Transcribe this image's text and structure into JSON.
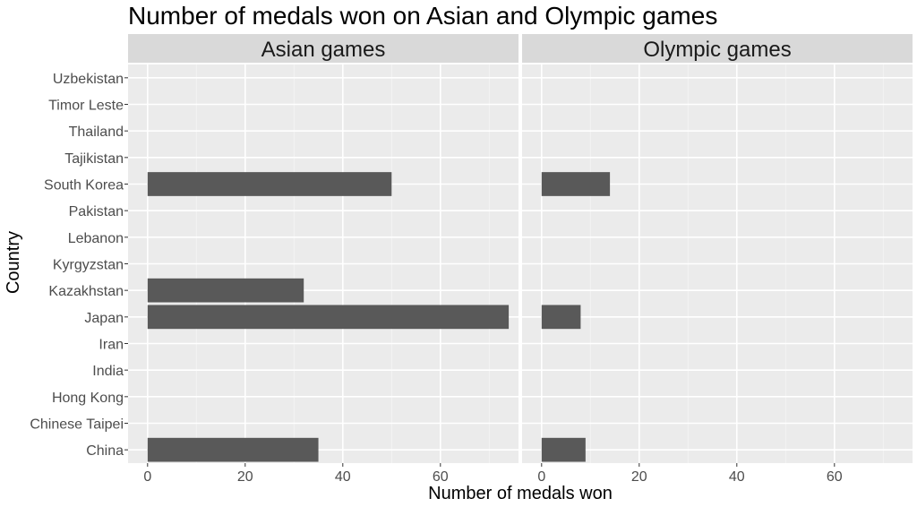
{
  "chart_data": {
    "type": "bar",
    "orientation": "horizontal",
    "title": "Number of medals won on Asian and Olympic games",
    "xlabel": "Number of medals won",
    "ylabel": "Country",
    "xlim": [
      -4,
      76
    ],
    "x_ticks": [
      0,
      20,
      40,
      60
    ],
    "grid": true,
    "legend": "none",
    "colors": {
      "bar": "#595959",
      "panel_background": "#ebebeb",
      "strip_background": "#d9d9d9",
      "grid_major": "#ffffff",
      "grid_minor": "#f5f5f5"
    },
    "categories": [
      "China",
      "Chinese Taipei",
      "Hong Kong",
      "India",
      "Iran",
      "Japan",
      "Kazakhstan",
      "Kyrgyzstan",
      "Lebanon",
      "Pakistan",
      "South Korea",
      "Tajikistan",
      "Thailand",
      "Timor Leste",
      "Uzbekistan"
    ],
    "facets": [
      {
        "name": "Asian games",
        "values": [
          35,
          0,
          0,
          0,
          0,
          74,
          32,
          0,
          0,
          0,
          50,
          0,
          0,
          0,
          0
        ]
      },
      {
        "name": "Olympic games",
        "values": [
          9,
          0,
          0,
          0,
          0,
          8,
          0,
          0,
          0,
          0,
          14,
          0,
          0,
          0,
          0
        ]
      }
    ]
  }
}
